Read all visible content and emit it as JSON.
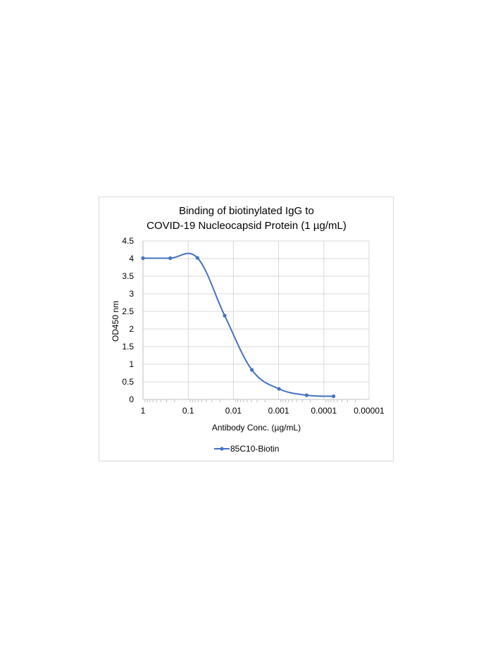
{
  "chart_data": {
    "type": "line",
    "title_lines": [
      "Binding of biotinylated IgG to",
      "COVID-19 Nucleocapsid Protein (1 µg/mL)"
    ],
    "xlabel": "Antibody Conc. (µg/mL)",
    "ylabel": "OD450 nm",
    "x_scale": "log",
    "x_reversed": true,
    "xlim": [
      1,
      1e-05
    ],
    "ylim": [
      0,
      4.5
    ],
    "x_tick_labels": [
      "1",
      "0.1",
      "0.01",
      "0.001",
      "0.0001",
      "0.00001"
    ],
    "y_tick_labels": [
      "0",
      "0.5",
      "1",
      "1.5",
      "2",
      "2.5",
      "3",
      "3.5",
      "4",
      "4.5"
    ],
    "grid": true,
    "smooth": true,
    "legend_position": "bottom",
    "color": "#4472c4",
    "series": [
      {
        "name": "85C10-Biotin",
        "x": [
          1,
          0.25,
          0.0625,
          0.0156,
          0.0039,
          0.00098,
          0.00024,
          6.1e-05
        ],
        "y": [
          4.01,
          4.01,
          4.02,
          2.38,
          0.84,
          0.3,
          0.12,
          0.09
        ]
      }
    ]
  }
}
